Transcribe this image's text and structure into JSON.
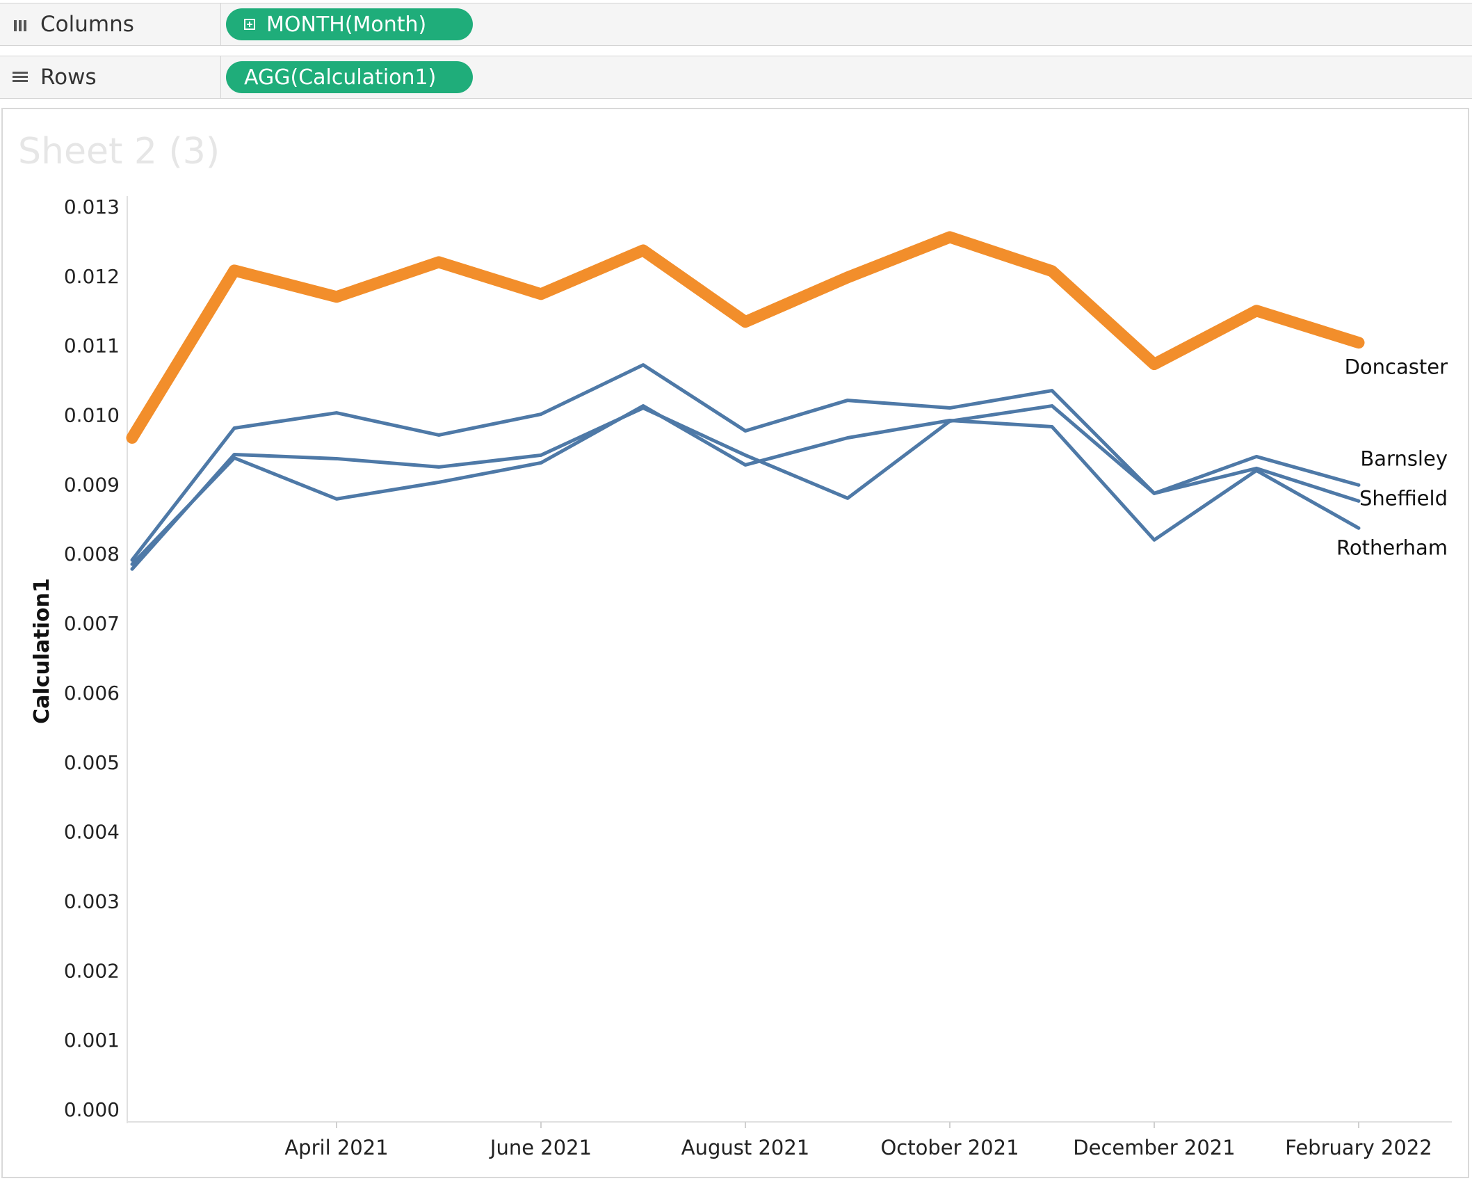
{
  "shelves": {
    "columns": {
      "label": "Columns",
      "pill": "MONTH(Month)",
      "icon": "columns-shelf-icon"
    },
    "rows": {
      "label": "Rows",
      "pill": "AGG(Calculation1)",
      "icon": "rows-shelf-icon"
    }
  },
  "sheet": {
    "title": "Sheet 2 (3)"
  },
  "colors": {
    "highlight": "#f28e2b",
    "series": "#4e79a7",
    "pill": "#1fad7a"
  },
  "chart_data": {
    "type": "line",
    "title": "",
    "xlabel": "",
    "ylabel": "Calculation1",
    "ylim": [
      0,
      0.013
    ],
    "yticks": [
      0.0,
      0.001,
      0.002,
      0.003,
      0.004,
      0.005,
      0.006,
      0.007,
      0.008,
      0.009,
      0.01,
      0.011,
      0.012,
      0.013
    ],
    "ytick_labels": [
      "0.000",
      "0.001",
      "0.002",
      "0.003",
      "0.004",
      "0.005",
      "0.006",
      "0.007",
      "0.008",
      "0.009",
      "0.010",
      "0.011",
      "0.012",
      "0.013"
    ],
    "x": [
      "Feb 2021",
      "Mar 2021",
      "Apr 2021",
      "May 2021",
      "Jun 2021",
      "Jul 2021",
      "Aug 2021",
      "Sep 2021",
      "Oct 2021",
      "Nov 2021",
      "Dec 2021",
      "Jan 2022",
      "Feb 2022"
    ],
    "xtick_indices": [
      2,
      4,
      6,
      8,
      10,
      12
    ],
    "xtick_labels": [
      "April 2021",
      "June 2021",
      "August 2021",
      "October 2021",
      "December 2021",
      "February 2022"
    ],
    "grid": false,
    "series": [
      {
        "name": "Doncaster",
        "highlight": true,
        "values": [
          0.00967,
          0.01208,
          0.0117,
          0.0122,
          0.01174,
          0.01237,
          0.01134,
          0.01198,
          0.01256,
          0.01207,
          0.01073,
          0.0115,
          0.01104
        ]
      },
      {
        "name": "Barnsley",
        "highlight": false,
        "values": [
          0.00791,
          0.00981,
          0.01003,
          0.00971,
          0.01001,
          0.01072,
          0.00977,
          0.01021,
          0.0101,
          0.01035,
          0.00887,
          0.0094,
          0.00899
        ]
      },
      {
        "name": "Sheffield",
        "highlight": false,
        "values": [
          0.00778,
          0.00943,
          0.00937,
          0.00925,
          0.00942,
          0.0101,
          0.00942,
          0.0088,
          0.00991,
          0.01013,
          0.00887,
          0.00923,
          0.00876
        ]
      },
      {
        "name": "Rotherham",
        "highlight": false,
        "values": [
          0.00785,
          0.00938,
          0.00879,
          0.00903,
          0.00931,
          0.01013,
          0.00928,
          0.00967,
          0.00992,
          0.00983,
          0.0082,
          0.0092,
          0.00837
        ]
      }
    ]
  }
}
